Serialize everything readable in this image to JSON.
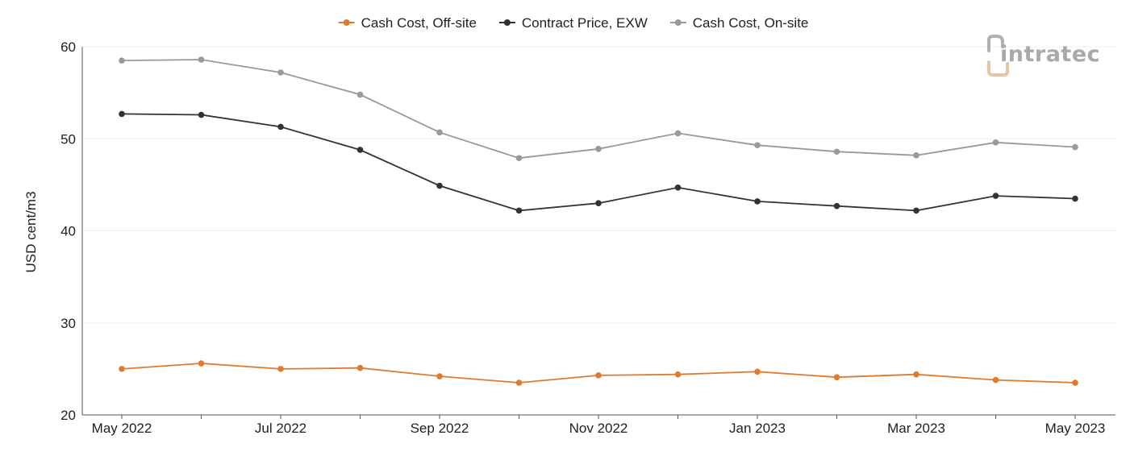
{
  "logo": {
    "text": "intratec",
    "text_color": "#a9a9a9",
    "accent_color": "#e3c6a6"
  },
  "chart_data": {
    "type": "line",
    "title": "",
    "xlabel": "",
    "ylabel": "USD cent/m3",
    "ylim": [
      20,
      60
    ],
    "yticks": [
      20,
      30,
      40,
      50,
      60
    ],
    "grid": true,
    "legend_position": "top-center",
    "x": [
      "May 2022",
      "Jun 2022",
      "Jul 2022",
      "Aug 2022",
      "Sep 2022",
      "Oct 2022",
      "Nov 2022",
      "Dec 2022",
      "Jan 2023",
      "Feb 2023",
      "Mar 2023",
      "Apr 2023",
      "May 2023"
    ],
    "x_tick_labels": [
      "May 2022",
      "",
      "Jul 2022",
      "",
      "Sep 2022",
      "",
      "Nov 2022",
      "",
      "Jan 2023",
      "",
      "Mar 2023",
      "",
      "May 2023"
    ],
    "series": [
      {
        "name": "Cash Cost, Off-site",
        "color": "#e07b2e",
        "values": [
          25.0,
          25.6,
          25.0,
          25.1,
          24.2,
          23.5,
          24.3,
          24.4,
          24.7,
          24.1,
          24.4,
          23.8,
          23.5
        ]
      },
      {
        "name": "Contract Price, EXW",
        "color": "#333333",
        "values": [
          52.7,
          52.6,
          51.3,
          48.8,
          44.9,
          42.2,
          43.0,
          44.7,
          43.2,
          42.7,
          42.2,
          43.8,
          43.5
        ]
      },
      {
        "name": "Cash Cost, On-site",
        "color": "#999999",
        "values": [
          58.5,
          58.6,
          57.2,
          54.8,
          50.7,
          47.9,
          48.9,
          50.6,
          49.3,
          48.6,
          48.2,
          49.6,
          49.1
        ]
      }
    ]
  }
}
